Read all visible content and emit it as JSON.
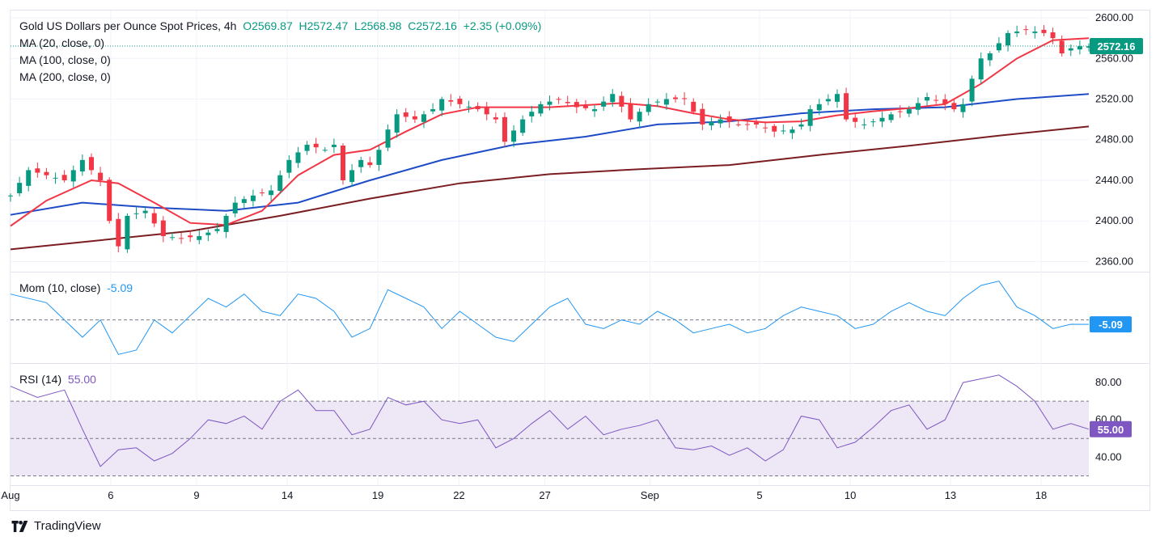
{
  "header": {
    "title": "Gold US Dollars per Ounce Spot Prices",
    "interval": "4h",
    "open": "O2569.87",
    "high": "H2572.47",
    "low": "L2568.98",
    "close": "C2572.16",
    "change": "+2.35 (+0.09%)"
  },
  "indicators": {
    "ma20": "MA (20, close, 0)",
    "ma100": "MA (100, close, 0)",
    "ma200": "MA (200, close, 0)",
    "mom_label": "Mom (10, close)",
    "mom_value": "-5.09",
    "rsi_label": "RSI (14)",
    "rsi_value": "55.00"
  },
  "badges": {
    "price": "2572.16",
    "mom": "-5.09",
    "rsi": "55.00"
  },
  "brand": {
    "name": "TradingView",
    "logo_icon": "tradingview-logo-icon"
  },
  "colors": {
    "up": "#089981",
    "down": "#f23645",
    "ma20": "#f23645",
    "ma100": "#1e4cc7",
    "ma200": "#7b1e22",
    "mom": "#2196f3",
    "rsi": "#7e57c2",
    "rsi_band": "#ede7f6"
  },
  "chart_data": [
    {
      "type": "candlestick",
      "title": "Gold US Dollars per Ounce Spot Prices, 4h",
      "x_tick_labels": [
        "Aug",
        "6",
        "9",
        "14",
        "19",
        "22",
        "27",
        "Sep",
        "5",
        "10",
        "13",
        "18"
      ],
      "y_tick_labels": [
        "2600.00",
        "2560.00",
        "2520.00",
        "2480.00",
        "2440.00",
        "2400.00",
        "2360.00"
      ],
      "ylim": [
        2350,
        2608
      ],
      "grid": true,
      "last_price": 2572.16,
      "close_points": [
        [
          0,
          2425
        ],
        [
          2,
          2450
        ],
        [
          4,
          2445
        ],
        [
          6,
          2440
        ],
        [
          8,
          2460
        ],
        [
          10,
          2440
        ],
        [
          11,
          2400
        ],
        [
          12,
          2375
        ],
        [
          13,
          2405
        ],
        [
          15,
          2410
        ],
        [
          17,
          2385
        ],
        [
          19,
          2383
        ],
        [
          21,
          2385
        ],
        [
          23,
          2392
        ],
        [
          24,
          2405
        ],
        [
          25,
          2418
        ],
        [
          27,
          2425
        ],
        [
          29,
          2430
        ],
        [
          31,
          2460
        ],
        [
          33,
          2475
        ],
        [
          35,
          2470
        ],
        [
          36,
          2475
        ],
        [
          37,
          2440
        ],
        [
          38,
          2450
        ],
        [
          39,
          2460
        ],
        [
          40,
          2455
        ],
        [
          41,
          2470
        ],
        [
          42,
          2490
        ],
        [
          43,
          2505
        ],
        [
          45,
          2500
        ],
        [
          47,
          2510
        ],
        [
          48,
          2520
        ],
        [
          50,
          2515
        ],
        [
          52,
          2510
        ],
        [
          54,
          2500
        ],
        [
          55,
          2478
        ],
        [
          57,
          2500
        ],
        [
          59,
          2515
        ],
        [
          61,
          2520
        ],
        [
          63,
          2512
        ],
        [
          65,
          2510
        ],
        [
          67,
          2525
        ],
        [
          69,
          2500
        ],
        [
          71,
          2515
        ],
        [
          73,
          2520
        ],
        [
          75,
          2520
        ],
        [
          77,
          2495
        ],
        [
          79,
          2500
        ],
        [
          81,
          2495
        ],
        [
          83,
          2495
        ],
        [
          85,
          2488
        ],
        [
          87,
          2490
        ],
        [
          88,
          2495
        ],
        [
          89,
          2510
        ],
        [
          91,
          2520
        ],
        [
          92,
          2525
        ],
        [
          93,
          2500
        ],
        [
          95,
          2495
        ],
        [
          96,
          2498
        ],
        [
          98,
          2505
        ],
        [
          100,
          2510
        ],
        [
          102,
          2522
        ],
        [
          104,
          2515
        ],
        [
          105,
          2510
        ],
        [
          106,
          2515
        ],
        [
          107,
          2540
        ],
        [
          108,
          2560
        ],
        [
          109,
          2565
        ],
        [
          111,
          2585
        ],
        [
          113,
          2588
        ],
        [
          115,
          2585
        ],
        [
          116,
          2580
        ],
        [
          117,
          2565
        ],
        [
          118,
          2570
        ],
        [
          119,
          2572
        ],
        [
          120,
          2572
        ]
      ],
      "series": [
        {
          "name": "MA (20, close, 0)",
          "points": [
            [
              0,
              2395
            ],
            [
              4,
              2420
            ],
            [
              9,
              2440
            ],
            [
              12,
              2437
            ],
            [
              16,
              2418
            ],
            [
              20,
              2398
            ],
            [
              24,
              2396
            ],
            [
              28,
              2410
            ],
            [
              32,
              2445
            ],
            [
              36,
              2465
            ],
            [
              40,
              2470
            ],
            [
              44,
              2488
            ],
            [
              48,
              2505
            ],
            [
              52,
              2512
            ],
            [
              56,
              2512
            ],
            [
              60,
              2512
            ],
            [
              64,
              2514
            ],
            [
              68,
              2516
            ],
            [
              72,
              2513
            ],
            [
              76,
              2506
            ],
            [
              80,
              2500
            ],
            [
              84,
              2497
            ],
            [
              88,
              2498
            ],
            [
              92,
              2504
            ],
            [
              96,
              2508
            ],
            [
              100,
              2511
            ],
            [
              104,
              2515
            ],
            [
              108,
              2535
            ],
            [
              112,
              2560
            ],
            [
              116,
              2578
            ],
            [
              120,
              2580
            ]
          ]
        },
        {
          "name": "MA (100, close, 0)",
          "points": [
            [
              0,
              2406
            ],
            [
              8,
              2418
            ],
            [
              16,
              2413
            ],
            [
              24,
              2410
            ],
            [
              32,
              2418
            ],
            [
              40,
              2440
            ],
            [
              48,
              2460
            ],
            [
              56,
              2475
            ],
            [
              64,
              2483
            ],
            [
              72,
              2495
            ],
            [
              80,
              2498
            ],
            [
              88,
              2506
            ],
            [
              96,
              2510
            ],
            [
              104,
              2512
            ],
            [
              112,
              2520
            ],
            [
              120,
              2525
            ]
          ]
        },
        {
          "name": "MA (200, close, 0)",
          "points": [
            [
              0,
              2372
            ],
            [
              10,
              2381
            ],
            [
              20,
              2390
            ],
            [
              30,
              2405
            ],
            [
              40,
              2422
            ],
            [
              50,
              2437
            ],
            [
              60,
              2446
            ],
            [
              70,
              2451
            ],
            [
              80,
              2455
            ],
            [
              90,
              2465
            ],
            [
              100,
              2474
            ],
            [
              110,
              2484
            ],
            [
              120,
              2493
            ]
          ]
        }
      ]
    },
    {
      "type": "line",
      "title": "Mom (10, close)",
      "name": "Mom (10, close)",
      "last_value": -5.09,
      "points": [
        [
          0,
          30
        ],
        [
          4,
          20
        ],
        [
          8,
          -20
        ],
        [
          10,
          0
        ],
        [
          12,
          -40
        ],
        [
          14,
          -35
        ],
        [
          16,
          0
        ],
        [
          18,
          -15
        ],
        [
          20,
          5
        ],
        [
          22,
          25
        ],
        [
          24,
          15
        ],
        [
          26,
          30
        ],
        [
          28,
          10
        ],
        [
          30,
          5
        ],
        [
          32,
          30
        ],
        [
          34,
          25
        ],
        [
          36,
          10
        ],
        [
          38,
          -20
        ],
        [
          40,
          -10
        ],
        [
          42,
          35
        ],
        [
          44,
          25
        ],
        [
          46,
          15
        ],
        [
          48,
          -10
        ],
        [
          50,
          10
        ],
        [
          52,
          -5
        ],
        [
          54,
          -20
        ],
        [
          56,
          -25
        ],
        [
          58,
          -5
        ],
        [
          60,
          15
        ],
        [
          62,
          25
        ],
        [
          64,
          -5
        ],
        [
          66,
          -10
        ],
        [
          68,
          0
        ],
        [
          70,
          -5
        ],
        [
          72,
          10
        ],
        [
          74,
          0
        ],
        [
          76,
          -15
        ],
        [
          78,
          -10
        ],
        [
          80,
          -5
        ],
        [
          82,
          -15
        ],
        [
          84,
          -10
        ],
        [
          86,
          5
        ],
        [
          88,
          15
        ],
        [
          90,
          10
        ],
        [
          92,
          5
        ],
        [
          94,
          -10
        ],
        [
          96,
          -5
        ],
        [
          98,
          10
        ],
        [
          100,
          20
        ],
        [
          102,
          10
        ],
        [
          104,
          5
        ],
        [
          106,
          25
        ],
        [
          108,
          40
        ],
        [
          110,
          45
        ],
        [
          112,
          15
        ],
        [
          114,
          5
        ],
        [
          116,
          -10
        ],
        [
          118,
          -5
        ],
        [
          120,
          -5.09
        ]
      ],
      "zero_line": 0
    },
    {
      "type": "line",
      "title": "RSI (14)",
      "name": "RSI (14)",
      "last_value": 55.0,
      "y_tick_labels": [
        "80.00",
        "60.00",
        "40.00"
      ],
      "levels": [
        70,
        50,
        30
      ],
      "points": [
        [
          0,
          78
        ],
        [
          3,
          72
        ],
        [
          6,
          76
        ],
        [
          8,
          55
        ],
        [
          10,
          35
        ],
        [
          12,
          44
        ],
        [
          14,
          45
        ],
        [
          16,
          38
        ],
        [
          18,
          42
        ],
        [
          20,
          50
        ],
        [
          22,
          60
        ],
        [
          24,
          58
        ],
        [
          26,
          62
        ],
        [
          28,
          55
        ],
        [
          30,
          70
        ],
        [
          32,
          76
        ],
        [
          34,
          65
        ],
        [
          36,
          65
        ],
        [
          38,
          52
        ],
        [
          40,
          55
        ],
        [
          42,
          72
        ],
        [
          44,
          68
        ],
        [
          46,
          70
        ],
        [
          48,
          60
        ],
        [
          50,
          58
        ],
        [
          52,
          60
        ],
        [
          54,
          45
        ],
        [
          56,
          50
        ],
        [
          58,
          58
        ],
        [
          60,
          65
        ],
        [
          62,
          55
        ],
        [
          64,
          62
        ],
        [
          66,
          52
        ],
        [
          68,
          55
        ],
        [
          70,
          57
        ],
        [
          72,
          60
        ],
        [
          74,
          45
        ],
        [
          76,
          44
        ],
        [
          78,
          46
        ],
        [
          80,
          41
        ],
        [
          82,
          45
        ],
        [
          84,
          38
        ],
        [
          86,
          44
        ],
        [
          88,
          62
        ],
        [
          90,
          60
        ],
        [
          92,
          45
        ],
        [
          94,
          48
        ],
        [
          96,
          56
        ],
        [
          98,
          65
        ],
        [
          100,
          68
        ],
        [
          102,
          55
        ],
        [
          104,
          60
        ],
        [
          106,
          80
        ],
        [
          108,
          82
        ],
        [
          110,
          84
        ],
        [
          112,
          78
        ],
        [
          114,
          70
        ],
        [
          116,
          55
        ],
        [
          118,
          58
        ],
        [
          120,
          55
        ]
      ]
    }
  ]
}
